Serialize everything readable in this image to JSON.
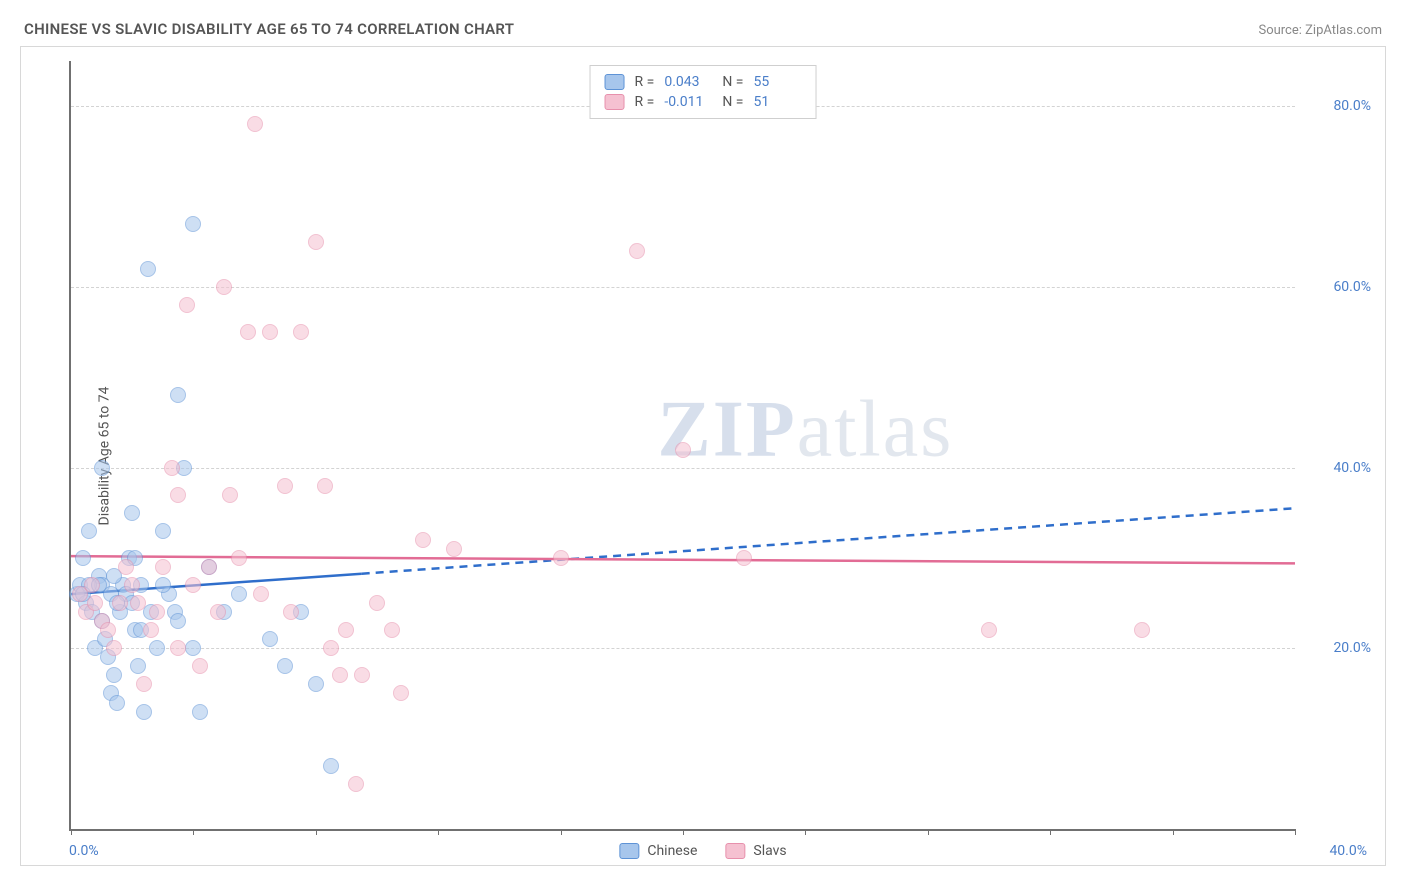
{
  "title": "CHINESE VS SLAVIC DISABILITY AGE 65 TO 74 CORRELATION CHART",
  "source": "Source: ZipAtlas.com",
  "ylabel": "Disability Age 65 to 74",
  "watermark_a": "ZIP",
  "watermark_b": "atlas",
  "chart": {
    "type": "scatter",
    "xlim": [
      0,
      40
    ],
    "ylim": [
      0,
      85
    ],
    "xtick_label_left": "0.0%",
    "xtick_label_right": "40.0%",
    "xtick_positions": [
      0,
      4,
      8,
      12,
      16,
      20,
      24,
      28,
      32,
      36,
      40
    ],
    "yticks": [
      20,
      40,
      60,
      80
    ],
    "ytick_labels": [
      "20.0%",
      "40.0%",
      "60.0%",
      "80.0%"
    ],
    "background_color": "#ffffff",
    "grid_color": "#d3d3d3",
    "marker_radius": 8,
    "marker_opacity": 0.55,
    "series": [
      {
        "name": "Chinese",
        "fill_color": "#a7c6ec",
        "stroke_color": "#5e93d6",
        "R": "0.043",
        "N": "55",
        "trend": {
          "y_at_x0": 26.0,
          "y_at_xmax": 35.5,
          "solid_until_x": 9.5,
          "color": "#2f6ecb"
        },
        "points": [
          [
            0.2,
            26
          ],
          [
            0.3,
            27
          ],
          [
            0.4,
            30
          ],
          [
            0.5,
            25
          ],
          [
            0.6,
            33
          ],
          [
            0.7,
            24
          ],
          [
            0.8,
            20
          ],
          [
            0.9,
            28
          ],
          [
            1.0,
            23
          ],
          [
            1.1,
            21
          ],
          [
            1.2,
            19
          ],
          [
            1.3,
            15
          ],
          [
            1.4,
            17
          ],
          [
            1.5,
            14
          ],
          [
            1.6,
            24
          ],
          [
            1.7,
            27
          ],
          [
            1.8,
            26
          ],
          [
            1.9,
            30
          ],
          [
            2.0,
            35
          ],
          [
            2.1,
            22
          ],
          [
            2.2,
            18
          ],
          [
            2.4,
            13
          ],
          [
            2.6,
            24
          ],
          [
            2.8,
            20
          ],
          [
            3.0,
            33
          ],
          [
            3.2,
            26
          ],
          [
            3.4,
            24
          ],
          [
            1.0,
            40
          ],
          [
            2.5,
            62
          ],
          [
            3.5,
            48
          ],
          [
            3.7,
            40
          ],
          [
            4.0,
            67
          ],
          [
            3.0,
            27
          ],
          [
            3.5,
            23
          ],
          [
            4.0,
            20
          ],
          [
            4.2,
            13
          ],
          [
            4.5,
            29
          ],
          [
            2.1,
            30
          ],
          [
            2.3,
            27
          ],
          [
            5.0,
            24
          ],
          [
            5.5,
            26
          ],
          [
            6.5,
            21
          ],
          [
            7.0,
            18
          ],
          [
            7.5,
            24
          ],
          [
            8.0,
            16
          ],
          [
            8.5,
            7
          ],
          [
            1.0,
            27
          ],
          [
            1.3,
            26
          ],
          [
            0.6,
            27
          ],
          [
            0.4,
            26
          ],
          [
            0.9,
            27
          ],
          [
            1.5,
            25
          ],
          [
            2.3,
            22
          ],
          [
            2.0,
            25
          ],
          [
            1.4,
            28
          ]
        ]
      },
      {
        "name": "Slavs",
        "fill_color": "#f5c1d1",
        "stroke_color": "#e790ac",
        "R": "-0.011",
        "N": "51",
        "trend": {
          "y_at_x0": 30.2,
          "y_at_xmax": 29.4,
          "solid_until_x": 40,
          "color": "#e26c95"
        },
        "points": [
          [
            0.3,
            26
          ],
          [
            0.5,
            24
          ],
          [
            0.7,
            27
          ],
          [
            0.8,
            25
          ],
          [
            1.0,
            23
          ],
          [
            1.2,
            22
          ],
          [
            1.4,
            20
          ],
          [
            1.6,
            25
          ],
          [
            1.8,
            29
          ],
          [
            2.0,
            27
          ],
          [
            2.2,
            25
          ],
          [
            2.4,
            16
          ],
          [
            2.6,
            22
          ],
          [
            2.8,
            24
          ],
          [
            3.0,
            29
          ],
          [
            3.3,
            40
          ],
          [
            3.5,
            20
          ],
          [
            3.8,
            58
          ],
          [
            4.0,
            27
          ],
          [
            4.2,
            18
          ],
          [
            4.5,
            29
          ],
          [
            4.8,
            24
          ],
          [
            5.0,
            60
          ],
          [
            5.2,
            37
          ],
          [
            5.5,
            30
          ],
          [
            5.8,
            55
          ],
          [
            6.0,
            78
          ],
          [
            6.2,
            26
          ],
          [
            6.5,
            55
          ],
          [
            7.0,
            38
          ],
          [
            7.2,
            24
          ],
          [
            7.5,
            55
          ],
          [
            8.0,
            65
          ],
          [
            8.3,
            38
          ],
          [
            8.5,
            20
          ],
          [
            8.8,
            17
          ],
          [
            9.0,
            22
          ],
          [
            9.3,
            5
          ],
          [
            9.5,
            17
          ],
          [
            10.0,
            25
          ],
          [
            10.5,
            22
          ],
          [
            10.8,
            15
          ],
          [
            11.5,
            32
          ],
          [
            12.5,
            31
          ],
          [
            16.0,
            30
          ],
          [
            18.5,
            64
          ],
          [
            20.0,
            42
          ],
          [
            22.0,
            30
          ],
          [
            30.0,
            22
          ],
          [
            35.0,
            22
          ],
          [
            3.5,
            37
          ]
        ]
      }
    ]
  },
  "legend_bottom": [
    {
      "label": "Chinese",
      "fill": "#a7c6ec",
      "stroke": "#5e93d6"
    },
    {
      "label": "Slavs",
      "fill": "#f5c1d1",
      "stroke": "#e790ac"
    }
  ]
}
